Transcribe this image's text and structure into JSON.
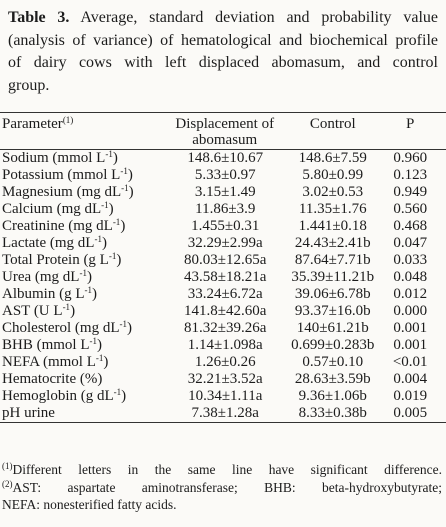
{
  "caption": {
    "label": "Table 3.",
    "lines": [
      "Average, standard deviation and probability value",
      "(analysis of variance) of hematological and biochemical profile",
      "of dairy cows with left displaced abomasum, and control",
      "group."
    ]
  },
  "table": {
    "headers": {
      "parameter": "Parameter",
      "parameter_note": "(1)",
      "displacement_line1": "Displacement of",
      "displacement_line2": "abomasum",
      "control": "Control",
      "p": "P"
    },
    "rows": [
      {
        "name": "Sodium (mmol L",
        "sup": "-1",
        "close": ")",
        "disp": "148.6±10.67",
        "ctrl": "148.6±7.59",
        "p": "0.960"
      },
      {
        "name": "Potassium (mmol L",
        "sup": "-1",
        "close": ")",
        "disp": "5.33±0.97",
        "ctrl": "5.80±0.99",
        "p": "0.123"
      },
      {
        "name": "Magnesium (mg dL",
        "sup": "-1",
        "close": ")",
        "disp": "3.15±1.49",
        "ctrl": "3.02±0.53",
        "p": "0.949"
      },
      {
        "name": "Calcium (mg dL",
        "sup": "-1",
        "close": ")",
        "disp": "11.86±3.9",
        "ctrl": "11.35±1.76",
        "p": "0.560"
      },
      {
        "name": "Creatinine (mg dL",
        "sup": "-1",
        "close": ")",
        "disp": "1.455±0.31",
        "ctrl": "1.441±0.18",
        "p": "0.468"
      },
      {
        "name": "Lactate (mg dL",
        "sup": "-1",
        "close": ")",
        "disp": "32.29±2.99a",
        "ctrl": "24.43±2.41b",
        "p": "0.047"
      },
      {
        "name": "Total Protein (g L",
        "sup": "-1",
        "close": ")",
        "disp": "80.03±12.65a",
        "ctrl": "87.64±7.71b",
        "p": "0.033"
      },
      {
        "name": "Urea (mg dL",
        "sup": "-1",
        "close": ")",
        "disp": "43.58±18.21a",
        "ctrl": "35.39±11.21b",
        "p": "0.048"
      },
      {
        "name": "Albumin (g L",
        "sup": "-1",
        "close": ")",
        "disp": "33.24±6.72a",
        "ctrl": "39.06±6.78b",
        "p": "0.012"
      },
      {
        "name": "AST (U L",
        "sup": "-1",
        "close": ")",
        "disp": "141.8±42.60a",
        "ctrl": "93.37±16.0b",
        "p": "0.000"
      },
      {
        "name": "Cholesterol (mg dL",
        "sup": "-1",
        "close": ")",
        "disp": "81.32±39.26a",
        "ctrl": "140±61.21b",
        "p": "0.001"
      },
      {
        "name": "BHB (mmol L",
        "sup": "-1",
        "close": ")",
        "disp": "1.14±1.098a",
        "ctrl": "0.699±0.283b",
        "p": "0.001"
      },
      {
        "name": "NEFA (mmol L",
        "sup": "-1",
        "close": ")",
        "disp": "1.26±0.26",
        "ctrl": "0.57±0.10",
        "p": "<0.01"
      },
      {
        "name": "Hematocrite (%)",
        "sup": "",
        "close": "",
        "disp": "32.21±3.52a",
        "ctrl": "28.63±3.59b",
        "p": "0.004"
      },
      {
        "name": "Hemoglobin (g dL",
        "sup": "-1",
        "close": ")",
        "disp": "10.34±1.11a",
        "ctrl": "9.36±1.06b",
        "p": "0.019"
      },
      {
        "name": "pH urine",
        "sup": "",
        "close": "",
        "disp": "7.38±1.28a",
        "ctrl": "8.33±0.38b",
        "p": "0.005"
      }
    ]
  },
  "footnotes": {
    "note1_mark": "(1)",
    "note1_text": "Different letters in the same line have significant difference.",
    "note2_mark": "(2)",
    "note2_text": "AST: aspartate aminotransferase; BHB: beta-hydroxybutyrate;",
    "note2_cont": "NEFA: nonesterified fatty acids."
  }
}
